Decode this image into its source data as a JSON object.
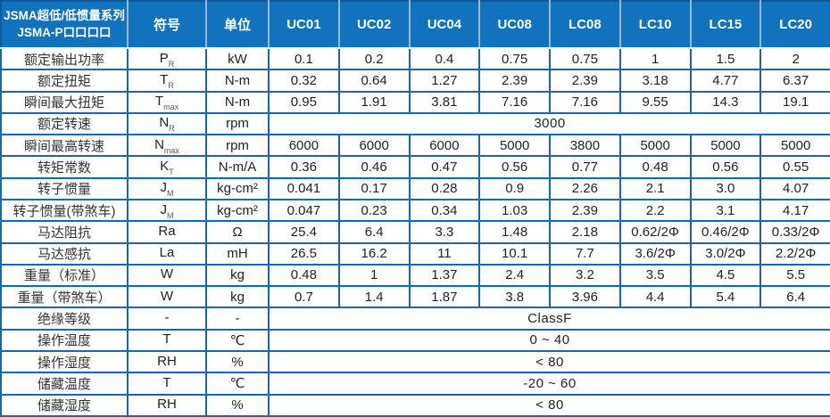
{
  "header": {
    "title_line1": "JSMA超低/低惯量系列",
    "title_line2": "JSMA-P口口口口",
    "symbol_col": "符号",
    "unit_col": "单位",
    "models": [
      "UC01",
      "UC02",
      "UC04",
      "UC08",
      "LC08",
      "LC10",
      "LC15",
      "LC20"
    ]
  },
  "colors": {
    "header_bg": "#1173bd",
    "grid_line": "#1a66ae",
    "outer_border": "#0d579c",
    "header_separator": "#9bb7d8",
    "header_text": "#ffffff",
    "body_text": "#222222"
  },
  "rows": [
    {
      "label": "额定输出功率",
      "sym": {
        "base": "P",
        "sub": "R"
      },
      "unit": "kW",
      "values": [
        "0.1",
        "0.2",
        "0.4",
        "0.75",
        "0.75",
        "1",
        "1.5",
        "2"
      ]
    },
    {
      "label": "额定扭矩",
      "sym": {
        "base": "T",
        "sub": "R"
      },
      "unit": "N-m",
      "values": [
        "0.32",
        "0.64",
        "1.27",
        "2.39",
        "2.39",
        "3.18",
        "4.77",
        "6.37"
      ]
    },
    {
      "label": "瞬间最大扭矩",
      "sym": {
        "base": "T",
        "sub": "max"
      },
      "unit": "N-m",
      "values": [
        "0.95",
        "1.91",
        "3.81",
        "7.16",
        "7.16",
        "9.55",
        "14.3",
        "19.1"
      ]
    },
    {
      "label": "额定转速",
      "sym": {
        "base": "N",
        "sub": "R"
      },
      "unit": "rpm",
      "span": "3000"
    },
    {
      "label": "瞬间最高转速",
      "sym": {
        "base": "N",
        "sub": "max"
      },
      "unit": "rpm",
      "values": [
        "6000",
        "6000",
        "6000",
        "5000",
        "3800",
        "5000",
        "5000",
        "5000"
      ]
    },
    {
      "label": "转矩常数",
      "sym": {
        "base": "K",
        "sub": "T"
      },
      "unit": "N-m/A",
      "values": [
        "0.36",
        "0.46",
        "0.47",
        "0.56",
        "0.77",
        "0.48",
        "0.56",
        "0.55"
      ]
    },
    {
      "label": "转子惯量",
      "sym": {
        "base": "J",
        "sub": "M"
      },
      "unit": "kg-cm²",
      "values": [
        "0.041",
        "0.17",
        "0.28",
        "0.9",
        "2.26",
        "2.1",
        "3.0",
        "4.07"
      ]
    },
    {
      "label": "转子惯量(带煞车)",
      "sym": {
        "base": "J",
        "sub": "M"
      },
      "unit": "kg-cm²",
      "values": [
        "0.047",
        "0.23",
        "0.34",
        "1.03",
        "2.39",
        "2.2",
        "3.1",
        "4.17"
      ]
    },
    {
      "label": "马达阻抗",
      "sym": {
        "base": "Ra",
        "sub": ""
      },
      "unit": "Ω",
      "values": [
        "25.4",
        "6.4",
        "3.3",
        "1.48",
        "2.18",
        "0.62/2Φ",
        "0.46/2Φ",
        "0.33/2Φ"
      ]
    },
    {
      "label": "马达感抗",
      "sym": {
        "base": "La",
        "sub": ""
      },
      "unit": "mH",
      "values": [
        "26.5",
        "16.2",
        "11",
        "10.1",
        "7.7",
        "3.6/2Φ",
        "3.0/2Φ",
        "2.2/2Φ"
      ]
    },
    {
      "label": "重量（标准）",
      "sym": {
        "base": "W",
        "sub": ""
      },
      "unit": "kg",
      "values": [
        "0.48",
        "1",
        "1.37",
        "2.4",
        "3.2",
        "3.5",
        "4.5",
        "5.5"
      ]
    },
    {
      "label": "重量（带煞车）",
      "sym": {
        "base": "W",
        "sub": ""
      },
      "unit": "kg",
      "values": [
        "0.7",
        "1.4",
        "1.87",
        "3.8",
        "3.96",
        "4.4",
        "5.4",
        "6.4"
      ]
    },
    {
      "label": "绝缘等级",
      "sym": {
        "base": "-",
        "sub": ""
      },
      "unit": "-",
      "span": "ClassF"
    },
    {
      "label": "操作温度",
      "sym": {
        "base": "T",
        "sub": ""
      },
      "unit": "℃",
      "span": "0 ~ 40"
    },
    {
      "label": "操作湿度",
      "sym": {
        "base": "RH",
        "sub": ""
      },
      "unit": "%",
      "span": "< 80"
    },
    {
      "label": "储藏温度",
      "sym": {
        "base": "T",
        "sub": ""
      },
      "unit": "℃",
      "span": "-20 ~ 60"
    },
    {
      "label": "储藏湿度",
      "sym": {
        "base": "RH",
        "sub": ""
      },
      "unit": "%",
      "span": "< 80"
    }
  ]
}
